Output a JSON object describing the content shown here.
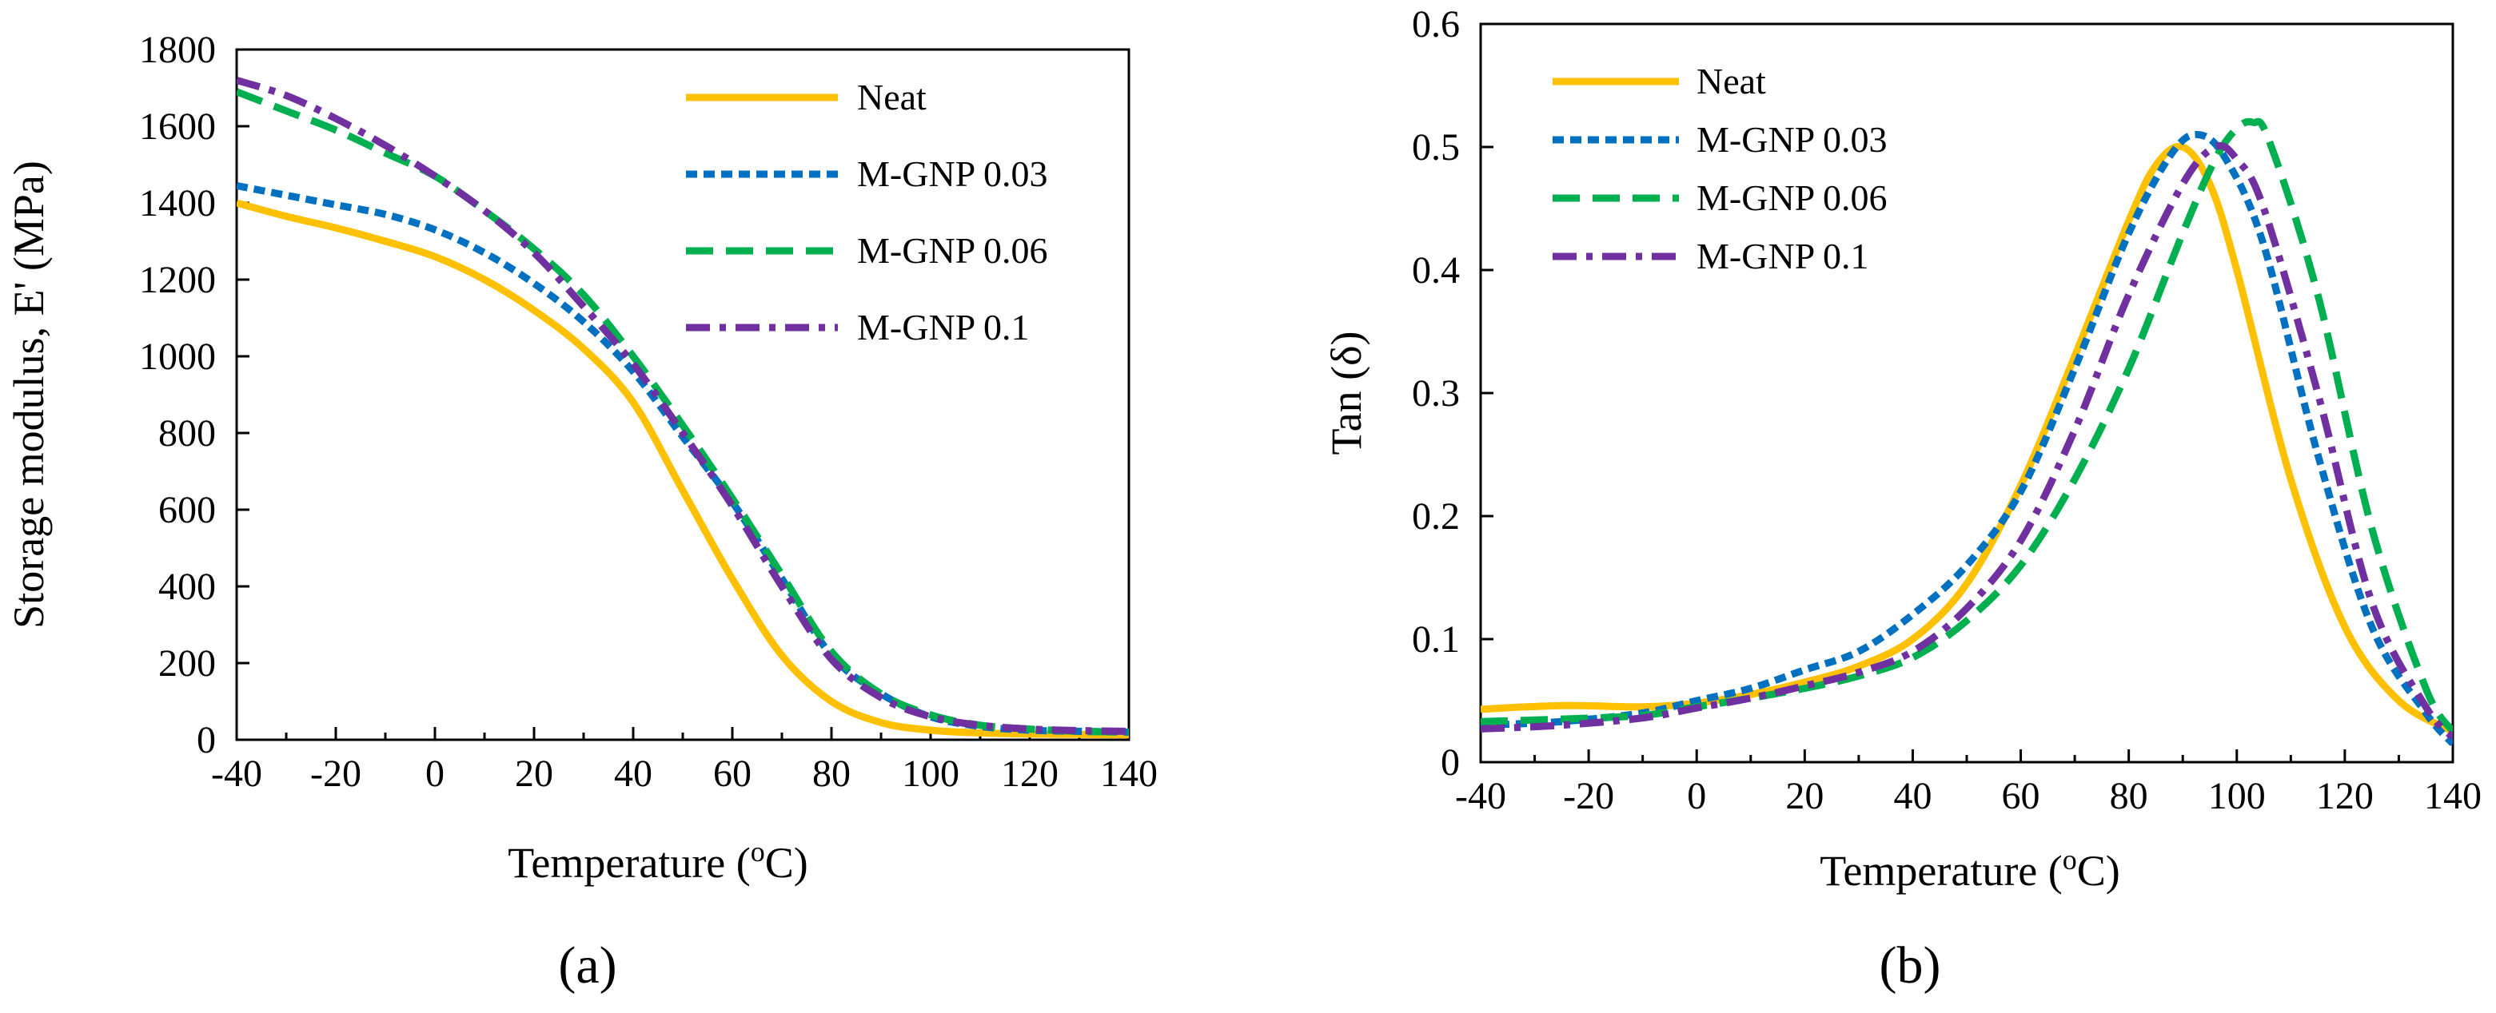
{
  "styles": [
    {
      "name": "Neat",
      "color": "#FFC000",
      "dash": "none"
    },
    {
      "name": "M-GNP 0.03",
      "color": "#0070C0",
      "dash": "dotted"
    },
    {
      "name": "M-GNP 0.06",
      "color": "#00B050",
      "dash": "dashed"
    },
    {
      "name": "M-GNP 0.1",
      "color": "#7030A0",
      "dash": "dashdot"
    }
  ],
  "chart_data": [
    {
      "type": "line",
      "panel": "(a)",
      "xlabel": "Temperature (",
      "xlabel_sup": "o",
      "xlabel_end": "C)",
      "ylabel": "Storage modulus, E' (MPa)",
      "xlim": [
        -40,
        140
      ],
      "ylim": [
        0,
        1800
      ],
      "xticks": [
        "-40",
        "-20",
        "0",
        "20",
        "40",
        "60",
        "80",
        "100",
        "120",
        "140"
      ],
      "yticks": [
        "0",
        "200",
        "400",
        "600",
        "800",
        "1000",
        "1200",
        "1400",
        "1600",
        "1800"
      ],
      "legend_position": "top-right",
      "series": [
        {
          "name": "Neat",
          "x": [
            -40,
            -30,
            -20,
            -10,
            0,
            10,
            20,
            30,
            40,
            50,
            60,
            70,
            80,
            90,
            100,
            110,
            120,
            130,
            140
          ],
          "y": [
            1400,
            1365,
            1335,
            1300,
            1260,
            1200,
            1120,
            1020,
            880,
            650,
            420,
            220,
            100,
            45,
            25,
            18,
            15,
            14,
            13
          ]
        },
        {
          "name": "M-GNP 0.03",
          "x": [
            -40,
            -30,
            -20,
            -10,
            0,
            10,
            20,
            30,
            40,
            50,
            60,
            70,
            80,
            90,
            100,
            110,
            120,
            130,
            140
          ],
          "y": [
            1445,
            1420,
            1395,
            1370,
            1330,
            1270,
            1190,
            1090,
            960,
            790,
            620,
            420,
            220,
            120,
            60,
            35,
            25,
            22,
            20
          ]
        },
        {
          "name": "M-GNP 0.06",
          "x": [
            -40,
            -30,
            -20,
            -10,
            0,
            10,
            20,
            30,
            40,
            50,
            60,
            70,
            80,
            90,
            100,
            110,
            120,
            130,
            140
          ],
          "y": [
            1690,
            1640,
            1590,
            1530,
            1470,
            1380,
            1280,
            1160,
            1000,
            820,
            630,
            430,
            230,
            120,
            65,
            38,
            28,
            22,
            20
          ]
        },
        {
          "name": "M-GNP 0.1",
          "x": [
            -40,
            -30,
            -20,
            -10,
            0,
            10,
            20,
            30,
            40,
            50,
            60,
            70,
            80,
            90,
            100,
            110,
            120,
            130,
            140
          ],
          "y": [
            1720,
            1680,
            1620,
            1550,
            1470,
            1380,
            1270,
            1130,
            980,
            800,
            610,
            400,
            210,
            110,
            60,
            38,
            28,
            24,
            22
          ]
        }
      ]
    },
    {
      "type": "line",
      "panel": "(b)",
      "xlabel": "Temperature (",
      "xlabel_sup": "o",
      "xlabel_end": "C)",
      "ylabel": "Tan (δ)",
      "xlim": [
        -40,
        140
      ],
      "ylim": [
        0,
        0.6
      ],
      "xticks": [
        "-40",
        "-20",
        "0",
        "20",
        "40",
        "60",
        "80",
        "100",
        "120",
        "140"
      ],
      "yticks": [
        "0",
        "0.1",
        "0.2",
        "0.3",
        "0.4",
        "0.5",
        "0.6"
      ],
      "legend_position": "top-left",
      "series": [
        {
          "name": "Neat",
          "x": [
            -40,
            -25,
            -10,
            0,
            10,
            20,
            30,
            40,
            50,
            60,
            70,
            80,
            85,
            90,
            95,
            100,
            110,
            120,
            130,
            140
          ],
          "y": [
            0.043,
            0.046,
            0.045,
            0.048,
            0.055,
            0.065,
            0.078,
            0.1,
            0.145,
            0.225,
            0.33,
            0.44,
            0.485,
            0.5,
            0.47,
            0.4,
            0.23,
            0.11,
            0.05,
            0.025
          ]
        },
        {
          "name": "M-GNP 0.03",
          "x": [
            -40,
            -25,
            -10,
            0,
            10,
            20,
            30,
            40,
            50,
            60,
            70,
            80,
            88,
            93,
            98,
            105,
            115,
            125,
            135,
            140
          ],
          "y": [
            0.03,
            0.033,
            0.04,
            0.05,
            0.06,
            0.075,
            0.09,
            0.12,
            0.16,
            0.22,
            0.32,
            0.43,
            0.495,
            0.51,
            0.49,
            0.42,
            0.25,
            0.11,
            0.04,
            0.015
          ]
        },
        {
          "name": "M-GNP 0.06",
          "x": [
            -40,
            -25,
            -10,
            0,
            10,
            20,
            30,
            40,
            50,
            60,
            70,
            80,
            90,
            96,
            100,
            103,
            106,
            115,
            125,
            135,
            140
          ],
          "y": [
            0.033,
            0.035,
            0.038,
            0.045,
            0.052,
            0.06,
            0.07,
            0.085,
            0.115,
            0.16,
            0.23,
            0.32,
            0.43,
            0.49,
            0.515,
            0.52,
            0.505,
            0.38,
            0.19,
            0.06,
            0.025
          ]
        },
        {
          "name": "M-GNP 0.1",
          "x": [
            -40,
            -25,
            -10,
            0,
            10,
            20,
            30,
            40,
            50,
            60,
            70,
            80,
            90,
            96,
            100,
            105,
            115,
            125,
            135,
            140
          ],
          "y": [
            0.027,
            0.03,
            0.036,
            0.044,
            0.052,
            0.062,
            0.073,
            0.09,
            0.125,
            0.18,
            0.27,
            0.38,
            0.47,
            0.5,
            0.49,
            0.45,
            0.3,
            0.13,
            0.045,
            0.02
          ]
        }
      ]
    }
  ]
}
